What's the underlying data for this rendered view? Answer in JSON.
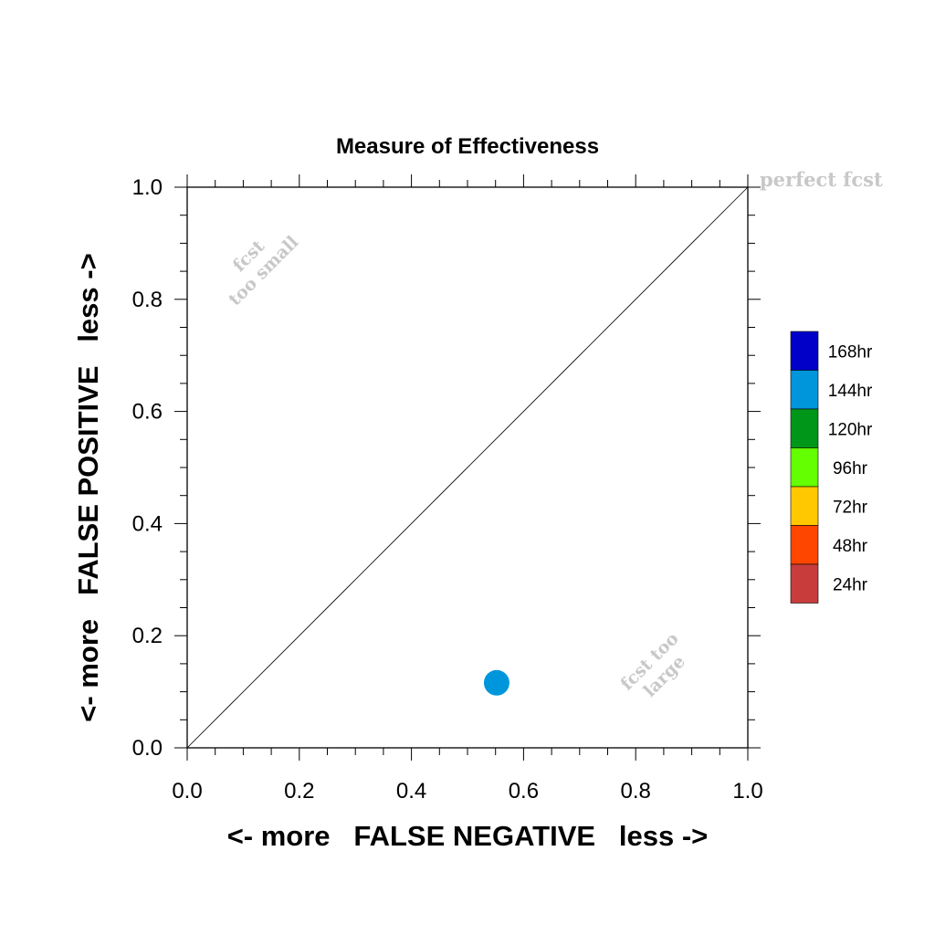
{
  "chart_data": {
    "type": "scatter",
    "title": "Measure of Effectiveness",
    "xlabel": "<- more   FALSE NEGATIVE   less ->",
    "ylabel": "<- more   FALSE POSITIVE   less ->",
    "xlim": [
      0,
      1
    ],
    "ylim": [
      0,
      1
    ],
    "x_ticks": [
      "0.0",
      "0.2",
      "0.4",
      "0.6",
      "0.8",
      "1.0"
    ],
    "y_ticks": [
      "0.0",
      "0.2",
      "0.4",
      "0.6",
      "0.8",
      "1.0"
    ],
    "grid": false,
    "legend_position": "right",
    "reference_line": {
      "from": [
        0,
        0
      ],
      "to": [
        1,
        1
      ]
    },
    "annotations": {
      "perfect": "perfect fcst",
      "small_line1": "fcst",
      "small_line2": "too small",
      "large_line1": "fcst too",
      "large_line2": "large"
    },
    "legend": [
      {
        "label": "168hr",
        "color": "#0000c8"
      },
      {
        "label": "144hr",
        "color": "#0096dc"
      },
      {
        "label": "120hr",
        "color": "#009619"
      },
      {
        "label": "96hr",
        "color": "#64ff00"
      },
      {
        "label": "72hr",
        "color": "#ffc800"
      },
      {
        "label": "48hr",
        "color": "#ff4600"
      },
      {
        "label": "24hr",
        "color": "#c83c3c"
      }
    ],
    "points": [
      {
        "series": "144hr",
        "x": 0.552,
        "y": 0.116,
        "color": "#0096dc"
      }
    ]
  }
}
